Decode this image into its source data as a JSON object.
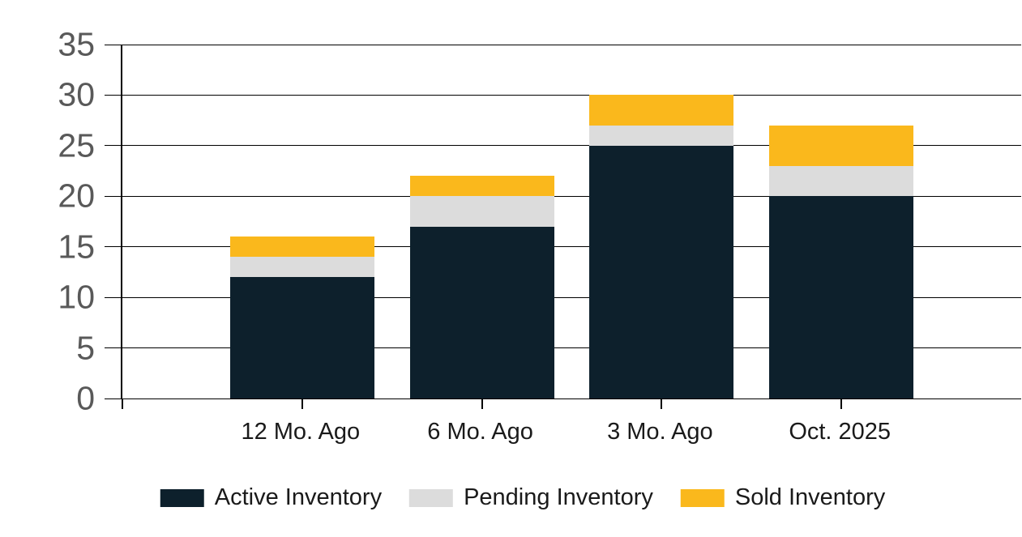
{
  "chart_data": {
    "type": "bar",
    "stacked": true,
    "title": "",
    "categories": [
      "12 Mo. Ago",
      "6 Mo. Ago",
      "3 Mo. Ago",
      "Oct. 2025"
    ],
    "series": [
      {
        "name": "Active Inventory",
        "color": "#0d202c",
        "values": [
          12,
          17,
          25,
          20
        ]
      },
      {
        "name": "Pending Inventory",
        "color": "#dcdcdc",
        "values": [
          2,
          3,
          2,
          3
        ]
      },
      {
        "name": "Sold Inventory",
        "color": "#fab81c",
        "values": [
          2,
          2,
          3,
          4
        ]
      }
    ],
    "stack_totals": [
      16,
      22,
      30,
      27
    ],
    "ylim": [
      0,
      35
    ],
    "ytick_step": 5,
    "ytick_labels": [
      "0",
      "5",
      "10",
      "15",
      "20",
      "25",
      "30",
      "35"
    ],
    "xlabel": "",
    "ylabel": "",
    "grid": true,
    "legend_position": "bottom"
  },
  "style": {
    "axis_label_color": "#595959",
    "category_label_color": "#1a1a1a",
    "legend_text_color": "#1a1a1a",
    "gridline_color": "#000000",
    "background": "#ffffff"
  }
}
